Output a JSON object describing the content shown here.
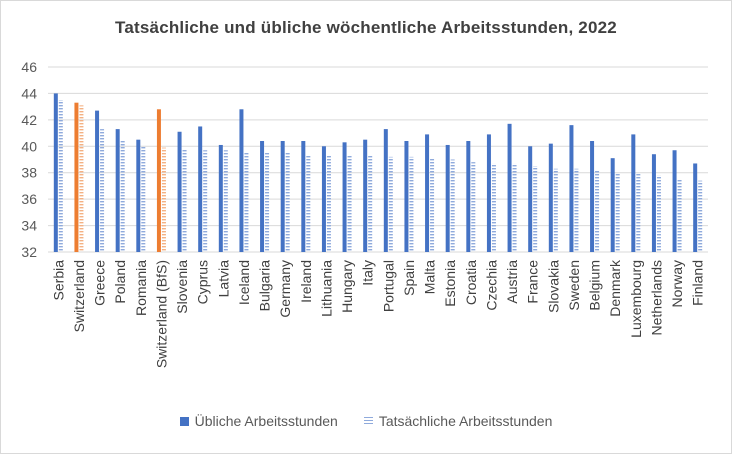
{
  "chart_data": {
    "type": "bar",
    "title": "Tatsächliche und übliche wöchentliche Arbeitsstunden, 2022",
    "xlabel": "",
    "ylabel": "",
    "ylim": [
      32,
      46
    ],
    "yticks": [
      32,
      34,
      36,
      38,
      40,
      42,
      44,
      46
    ],
    "grid": true,
    "legend_position": "bottom",
    "categories": [
      "Serbia",
      "Switzerland",
      "Greece",
      "Poland",
      "Romania",
      "Switzerland (BfS)",
      "Slovenia",
      "Cyprus",
      "Latvia",
      "Iceland",
      "Bulgaria",
      "Germany",
      "Ireland",
      "Lithuania",
      "Hungary",
      "Italy",
      "Portugal",
      "Spain",
      "Malta",
      "Estonia",
      "Croatia",
      "Czechia",
      "Austria",
      "France",
      "Slovakia",
      "Sweden",
      "Belgium",
      "Denmark",
      "Luxembourg",
      "Netherlands",
      "Norway",
      "Finland"
    ],
    "highlight_categories": [
      "Switzerland",
      "Switzerland (BfS)"
    ],
    "series": [
      {
        "name": "Übliche Arbeitsstunden",
        "color": "#4472c4",
        "highlight_color": "#ed7d31",
        "pattern": "solid",
        "values": [
          44.0,
          43.3,
          42.7,
          41.3,
          40.5,
          42.8,
          41.1,
          41.5,
          40.1,
          42.8,
          40.4,
          40.4,
          40.4,
          40.0,
          40.3,
          40.5,
          41.3,
          40.4,
          40.9,
          40.1,
          40.4,
          40.9,
          41.7,
          40.0,
          40.2,
          41.6,
          40.4,
          39.1,
          40.9,
          39.4,
          39.7,
          38.7
        ]
      },
      {
        "name": "Tatsächliche Arbeitsstunden",
        "color": "#8faadc",
        "highlight_color": "#f4b183",
        "pattern": "horizontal-lines",
        "values": [
          43.5,
          43.1,
          41.3,
          40.5,
          40.0,
          39.9,
          39.8,
          39.7,
          39.7,
          39.5,
          39.5,
          39.5,
          39.3,
          39.3,
          39.3,
          39.3,
          39.2,
          39.2,
          39.1,
          39.0,
          38.8,
          38.7,
          38.7,
          38.5,
          38.3,
          38.3,
          38.2,
          37.9,
          37.9,
          37.8,
          37.5,
          37.4
        ]
      }
    ]
  }
}
